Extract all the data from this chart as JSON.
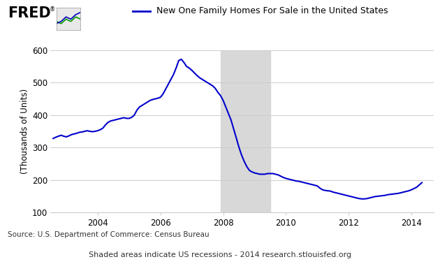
{
  "title": "New One Family Homes For Sale in the United States",
  "ylabel": "(Thousands of Units)",
  "source_text": "Source: U.S. Department of Commerce: Census Bureau",
  "footnote_text": "Shaded areas indicate US recessions - 2014 research.stlouisfed.org",
  "line_color": "#0000CC",
  "recession_color": "#D8D8D8",
  "recession_start": 2007.917,
  "recession_end": 2009.5,
  "ylim": [
    100,
    600
  ],
  "yticks": [
    100,
    200,
    300,
    400,
    500,
    600
  ],
  "xlim_start": 2002.5,
  "xlim_end": 2014.7,
  "xticks": [
    2004,
    2006,
    2008,
    2010,
    2012,
    2014
  ],
  "background_color": "#ffffff",
  "grid_color": "#cccccc",
  "data_x": [
    2002.583,
    2002.667,
    2002.75,
    2002.833,
    2002.917,
    2003.0,
    2003.083,
    2003.167,
    2003.25,
    2003.333,
    2003.417,
    2003.5,
    2003.583,
    2003.667,
    2003.75,
    2003.833,
    2003.917,
    2004.0,
    2004.083,
    2004.167,
    2004.25,
    2004.333,
    2004.417,
    2004.5,
    2004.583,
    2004.667,
    2004.75,
    2004.833,
    2004.917,
    2005.0,
    2005.083,
    2005.167,
    2005.25,
    2005.333,
    2005.417,
    2005.5,
    2005.583,
    2005.667,
    2005.75,
    2005.833,
    2005.917,
    2006.0,
    2006.083,
    2006.167,
    2006.25,
    2006.333,
    2006.417,
    2006.5,
    2006.583,
    2006.667,
    2006.75,
    2006.833,
    2006.917,
    2007.0,
    2007.083,
    2007.167,
    2007.25,
    2007.333,
    2007.417,
    2007.5,
    2007.583,
    2007.667,
    2007.75,
    2007.833,
    2007.917,
    2008.0,
    2008.083,
    2008.167,
    2008.25,
    2008.333,
    2008.417,
    2008.5,
    2008.583,
    2008.667,
    2008.75,
    2008.833,
    2008.917,
    2009.0,
    2009.083,
    2009.167,
    2009.25,
    2009.333,
    2009.417,
    2009.5,
    2009.583,
    2009.667,
    2009.75,
    2009.833,
    2009.917,
    2010.0,
    2010.083,
    2010.167,
    2010.25,
    2010.333,
    2010.417,
    2010.5,
    2010.583,
    2010.667,
    2010.75,
    2010.833,
    2010.917,
    2011.0,
    2011.083,
    2011.167,
    2011.25,
    2011.333,
    2011.417,
    2011.5,
    2011.583,
    2011.667,
    2011.75,
    2011.833,
    2011.917,
    2012.0,
    2012.083,
    2012.167,
    2012.25,
    2012.333,
    2012.417,
    2012.5,
    2012.583,
    2012.667,
    2012.75,
    2012.833,
    2012.917,
    2013.0,
    2013.083,
    2013.167,
    2013.25,
    2013.333,
    2013.417,
    2013.5,
    2013.583,
    2013.667,
    2013.75,
    2013.833,
    2013.917,
    2014.0,
    2014.083,
    2014.167,
    2014.25,
    2014.333
  ],
  "data_y": [
    328,
    332,
    335,
    338,
    335,
    333,
    336,
    340,
    342,
    344,
    347,
    348,
    350,
    352,
    350,
    349,
    350,
    352,
    355,
    360,
    370,
    378,
    382,
    384,
    386,
    388,
    390,
    392,
    390,
    390,
    393,
    400,
    415,
    425,
    430,
    435,
    440,
    445,
    448,
    450,
    452,
    455,
    465,
    480,
    495,
    510,
    525,
    545,
    568,
    572,
    562,
    550,
    545,
    538,
    530,
    522,
    515,
    510,
    505,
    500,
    495,
    490,
    482,
    470,
    460,
    445,
    425,
    405,
    385,
    358,
    330,
    302,
    278,
    258,
    242,
    230,
    225,
    222,
    220,
    218,
    218,
    218,
    220,
    220,
    220,
    218,
    216,
    212,
    208,
    205,
    203,
    201,
    199,
    197,
    196,
    194,
    192,
    190,
    188,
    186,
    184,
    182,
    175,
    170,
    168,
    167,
    166,
    163,
    161,
    159,
    157,
    155,
    153,
    151,
    149,
    147,
    145,
    143,
    142,
    142,
    143,
    145,
    147,
    149,
    150,
    151,
    152,
    153,
    155,
    156,
    157,
    158,
    159,
    161,
    163,
    165,
    167,
    170,
    174,
    178,
    185,
    192
  ]
}
